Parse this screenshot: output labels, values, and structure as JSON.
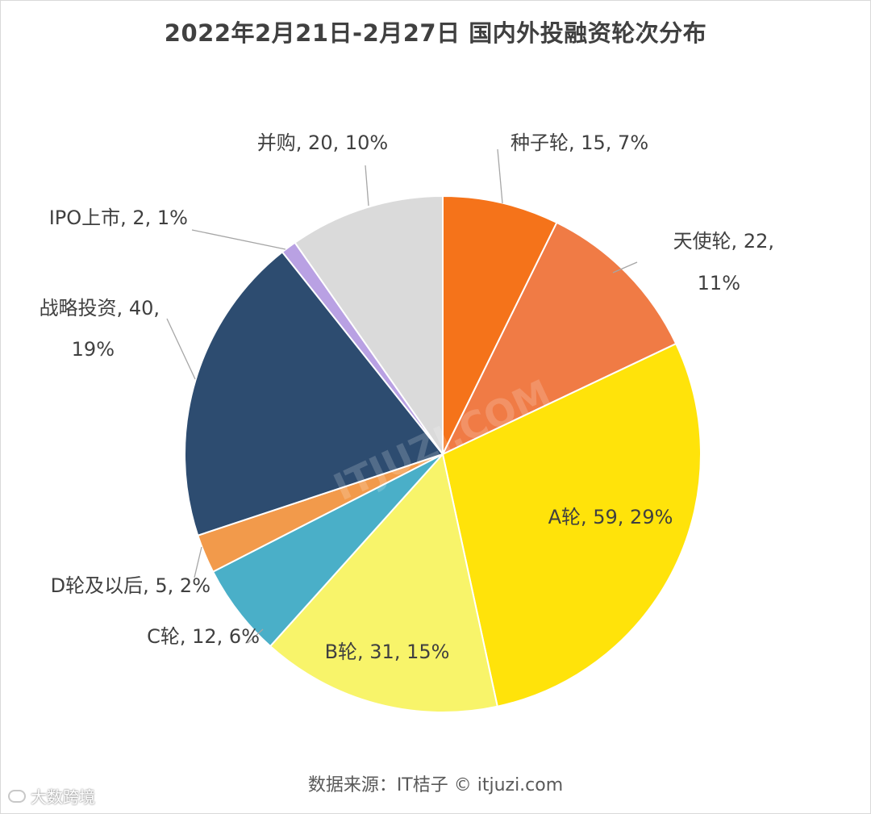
{
  "title": "2022年2月21日-2月27日 国内外投融资轮次分布",
  "source": "数据来源：IT桔子 © itjuzi.com",
  "corner_watermark": "大数跨境",
  "center_watermark": "ITJUZI.COM",
  "chart_data": {
    "type": "pie",
    "title": "2022年2月21日-2月27日 国内外投融资轮次分布",
    "start": "12 o'clock, clockwise",
    "slices": [
      {
        "label": "种子轮",
        "value": 15,
        "percent": "7%",
        "color": "#F5731A",
        "text": [
          "种子轮, 15, 7%"
        ]
      },
      {
        "label": "天使轮",
        "value": 22,
        "percent": "11%",
        "color": "#F07B45",
        "text": [
          "天使轮, 22,",
          "11%"
        ]
      },
      {
        "label": "A轮",
        "value": 59,
        "percent": "29%",
        "color": "#FFE30A",
        "text": [
          "A轮, 59, 29%"
        ]
      },
      {
        "label": "B轮",
        "value": 31,
        "percent": "15%",
        "color": "#F8F46A",
        "text": [
          "B轮, 31, 15%"
        ]
      },
      {
        "label": "C轮",
        "value": 12,
        "percent": "6%",
        "color": "#4AAFC8",
        "text": [
          "C轮, 12, 6%"
        ]
      },
      {
        "label": "D轮及以后",
        "value": 5,
        "percent": "2%",
        "color": "#F29A4B",
        "text": [
          "D轮及以后, 5, 2%"
        ]
      },
      {
        "label": "战略投资",
        "value": 40,
        "percent": "19%",
        "color": "#2D4C70",
        "text": [
          "战略投资, 40,",
          "19%"
        ]
      },
      {
        "label": "IPO上市",
        "value": 2,
        "percent": "1%",
        "color": "#B9A1E3",
        "text": [
          "IPO上市, 2, 1%"
        ]
      },
      {
        "label": "并购",
        "value": 20,
        "percent": "10%",
        "color": "#DADADA",
        "text": [
          "并购, 20, 10%"
        ]
      }
    ]
  }
}
